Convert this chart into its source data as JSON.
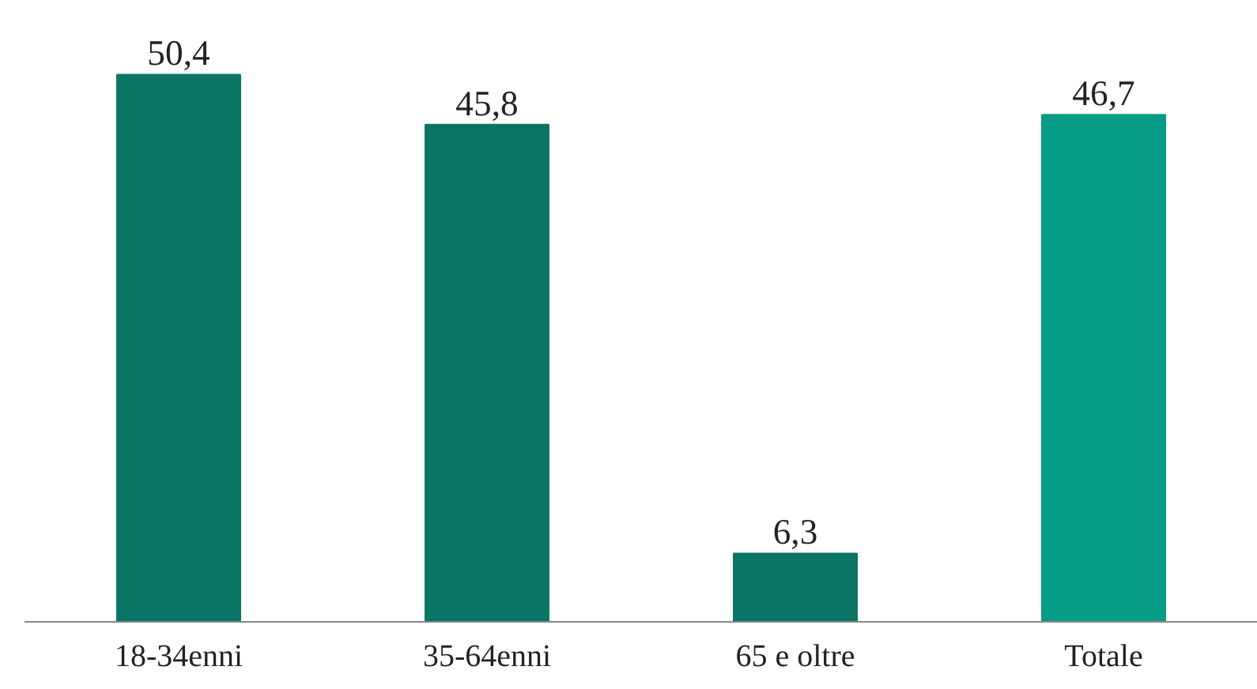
{
  "chart_data": {
    "type": "bar",
    "categories": [
      "18-34enni",
      "35-64enni",
      "65 e oltre",
      "Totale"
    ],
    "values": [
      50.4,
      45.8,
      6.3,
      46.7
    ],
    "colors": [
      "#0b7565",
      "#0b7565",
      "#0b7565",
      "#069c86"
    ],
    "value_labels": [
      "50,4",
      "45,8",
      "6,3",
      "46,7"
    ]
  }
}
